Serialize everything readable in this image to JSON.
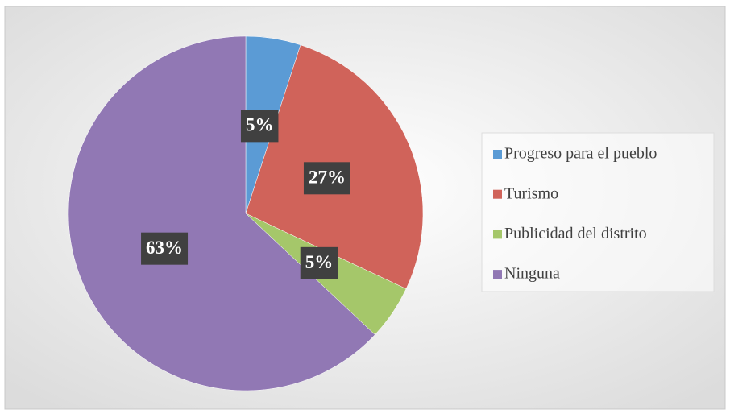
{
  "chart_data": {
    "type": "pie",
    "categories": [
      "Progreso para el pueblo",
      "Turismo",
      "Publicidad del distrito",
      "Ninguna"
    ],
    "values": [
      5,
      27,
      5,
      63
    ],
    "value_labels": [
      "5%",
      "27%",
      "5%",
      "63%"
    ],
    "colors": [
      "#5b9bd5",
      "#d0635a",
      "#a5c76a",
      "#9178b4"
    ],
    "legend": "right"
  }
}
